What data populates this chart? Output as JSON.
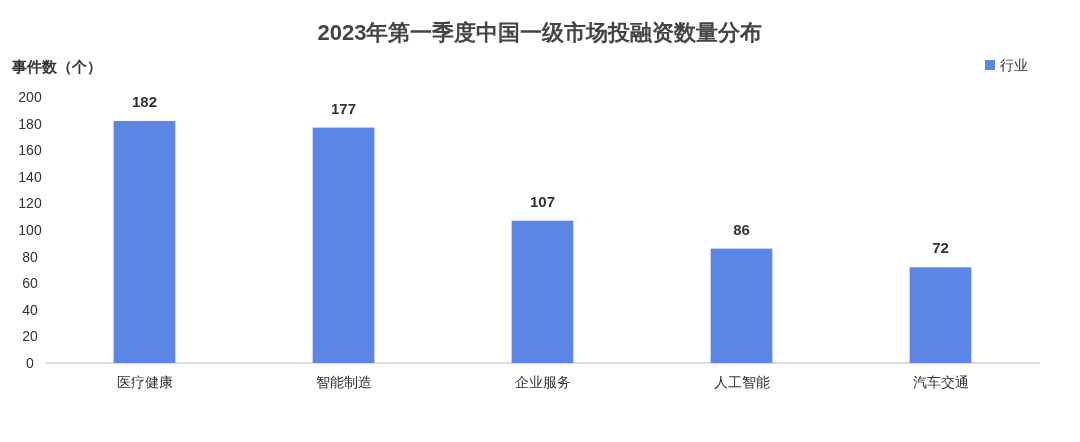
{
  "chart_data": {
    "type": "bar",
    "title": "2023年第一季度中国一级市场投融资数量分布",
    "ylabel": "事件数（个）",
    "categories": [
      "医疗健康",
      "智能制造",
      "企业服务",
      "人工智能",
      "汽车交通"
    ],
    "series": [
      {
        "name": "行业",
        "color": "#5b86e5",
        "values": [
          182,
          177,
          107,
          86,
          72
        ]
      }
    ],
    "ylim": [
      0,
      200
    ],
    "yticks": [
      0,
      20,
      40,
      60,
      80,
      100,
      120,
      140,
      160,
      180,
      200
    ],
    "data_labels": true,
    "legend": "top right",
    "grid": false
  }
}
